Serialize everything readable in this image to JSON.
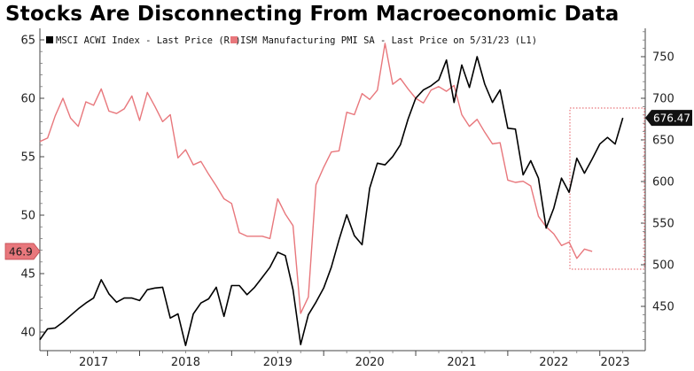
{
  "title": "Stocks Are Disconnecting From Macroeconomic Data",
  "chart_data": {
    "type": "line",
    "title": "Stocks Are Disconnecting From Macroeconomic Data",
    "legend_position": "top-left",
    "grid": false,
    "x_ticks": [
      "2017",
      "2018",
      "2019",
      "2020",
      "2021",
      "2022",
      "2023"
    ],
    "x_range": [
      "2016-12",
      "2023-06"
    ],
    "left_axis": {
      "ticks": [
        40,
        45,
        50,
        55,
        60,
        65
      ],
      "ylim": [
        40,
        65
      ],
      "last_value_tag": "46.9"
    },
    "right_axis": {
      "ticks": [
        450,
        500,
        550,
        600,
        650,
        700,
        750
      ],
      "ylim": [
        400,
        790
      ],
      "last_value_tag": "676.47"
    },
    "series": [
      {
        "name": "MSCI ACWI Index - Last Price (R1)",
        "axis": "right",
        "color": "#000000",
        "points": [
          [
            "2016-12",
            410
          ],
          [
            "2017-01",
            423
          ],
          [
            "2017-02",
            424
          ],
          [
            "2017-03",
            431
          ],
          [
            "2017-04",
            439
          ],
          [
            "2017-05",
            447
          ],
          [
            "2017-06",
            454
          ],
          [
            "2017-07",
            460
          ],
          [
            "2017-08",
            482
          ],
          [
            "2017-09",
            465
          ],
          [
            "2017-10",
            455
          ],
          [
            "2017-11",
            460
          ],
          [
            "2017-12",
            460
          ],
          [
            "2018-01",
            457
          ],
          [
            "2018-02",
            470
          ],
          [
            "2018-03",
            472
          ],
          [
            "2018-04",
            473
          ],
          [
            "2018-05",
            436
          ],
          [
            "2018-06",
            441
          ],
          [
            "2018-07",
            403
          ],
          [
            "2018-08",
            441
          ],
          [
            "2018-09",
            454
          ],
          [
            "2018-10",
            459
          ],
          [
            "2018-11",
            473
          ],
          [
            "2018-12",
            438
          ],
          [
            "2019-01",
            475
          ],
          [
            "2019-02",
            475
          ],
          [
            "2019-03",
            464
          ],
          [
            "2019-04",
            473
          ],
          [
            "2019-05",
            485
          ],
          [
            "2019-06",
            497
          ],
          [
            "2019-07",
            515
          ],
          [
            "2019-08",
            511
          ],
          [
            "2019-09",
            470
          ],
          [
            "2019-10",
            404
          ],
          [
            "2019-11",
            440
          ],
          [
            "2019-12",
            455
          ],
          [
            "2020-01",
            472
          ],
          [
            "2020-02",
            497
          ],
          [
            "2020-03",
            530
          ],
          [
            "2020-04",
            560
          ],
          [
            "2020-05",
            535
          ],
          [
            "2020-06",
            524
          ],
          [
            "2020-07",
            592
          ],
          [
            "2020-08",
            622
          ],
          [
            "2020-09",
            620
          ],
          [
            "2020-10",
            630
          ],
          [
            "2020-11",
            644
          ],
          [
            "2020-12",
            675
          ],
          [
            "2021-01",
            700
          ],
          [
            "2021-02",
            710
          ],
          [
            "2021-03",
            715
          ],
          [
            "2021-04",
            722
          ],
          [
            "2021-05",
            746
          ],
          [
            "2021-06",
            695
          ],
          [
            "2021-07",
            740
          ],
          [
            "2021-08",
            713
          ],
          [
            "2021-09",
            750
          ],
          [
            "2021-10",
            717
          ],
          [
            "2021-11",
            695
          ],
          [
            "2021-12",
            710
          ],
          [
            "2022-01",
            664
          ],
          [
            "2022-02",
            663
          ],
          [
            "2022-03",
            608
          ],
          [
            "2022-04",
            625
          ],
          [
            "2022-05",
            604
          ],
          [
            "2022-06",
            544
          ],
          [
            "2022-07",
            568
          ],
          [
            "2022-08",
            604
          ],
          [
            "2022-09",
            587
          ],
          [
            "2022-10",
            628
          ],
          [
            "2022-11",
            610
          ],
          [
            "2022-12",
            627
          ],
          [
            "2023-01",
            645
          ],
          [
            "2023-02",
            653
          ],
          [
            "2023-03",
            645
          ],
          [
            "2023-04",
            676.47
          ]
        ]
      },
      {
        "name": "ISM Manufacturing PMI SA - Last Price on 5/31/23 (L1)",
        "axis": "left",
        "color": "#e8777c",
        "points": [
          [
            "2016-12",
            56.3
          ],
          [
            "2017-01",
            56.6
          ],
          [
            "2017-02",
            58.5
          ],
          [
            "2017-03",
            60.0
          ],
          [
            "2017-04",
            58.3
          ],
          [
            "2017-05",
            57.6
          ],
          [
            "2017-06",
            59.7
          ],
          [
            "2017-07",
            59.4
          ],
          [
            "2017-08",
            60.8
          ],
          [
            "2017-09",
            58.9
          ],
          [
            "2017-10",
            58.7
          ],
          [
            "2017-11",
            59.1
          ],
          [
            "2017-12",
            60.2
          ],
          [
            "2018-01",
            58.1
          ],
          [
            "2018-02",
            60.5
          ],
          [
            "2018-03",
            59.3
          ],
          [
            "2018-04",
            58.0
          ],
          [
            "2018-05",
            58.6
          ],
          [
            "2018-06",
            54.9
          ],
          [
            "2018-07",
            55.6
          ],
          [
            "2018-08",
            54.3
          ],
          [
            "2018-09",
            54.6
          ],
          [
            "2018-10",
            53.5
          ],
          [
            "2018-11",
            52.5
          ],
          [
            "2018-12",
            51.4
          ],
          [
            "2019-01",
            51.0
          ],
          [
            "2019-02",
            48.5
          ],
          [
            "2019-03",
            48.2
          ],
          [
            "2019-04",
            48.2
          ],
          [
            "2019-05",
            48.2
          ],
          [
            "2019-06",
            48.0
          ],
          [
            "2019-07",
            51.4
          ],
          [
            "2019-08",
            50.1
          ],
          [
            "2019-09",
            49.1
          ],
          [
            "2019-10",
            41.6
          ],
          [
            "2019-11",
            43.0
          ],
          [
            "2019-12",
            52.6
          ],
          [
            "2020-01",
            54.1
          ],
          [
            "2020-02",
            55.4
          ],
          [
            "2020-03",
            55.5
          ],
          [
            "2020-04",
            58.8
          ],
          [
            "2020-05",
            58.6
          ],
          [
            "2020-06",
            60.4
          ],
          [
            "2020-07",
            59.9
          ],
          [
            "2020-08",
            60.7
          ],
          [
            "2020-09",
            64.7
          ],
          [
            "2020-10",
            61.2
          ],
          [
            "2020-11",
            61.7
          ],
          [
            "2020-12",
            60.8
          ],
          [
            "2021-01",
            60.0
          ],
          [
            "2021-02",
            59.6
          ],
          [
            "2021-03",
            60.7
          ],
          [
            "2021-04",
            61.0
          ],
          [
            "2021-05",
            60.6
          ],
          [
            "2021-06",
            61.1
          ],
          [
            "2021-07",
            58.6
          ],
          [
            "2021-08",
            57.6
          ],
          [
            "2021-09",
            58.2
          ],
          [
            "2021-10",
            57.1
          ],
          [
            "2021-11",
            56.1
          ],
          [
            "2021-12",
            56.2
          ],
          [
            "2022-01",
            53.0
          ],
          [
            "2022-02",
            52.8
          ],
          [
            "2022-03",
            52.9
          ],
          [
            "2022-04",
            52.5
          ],
          [
            "2022-05",
            49.9
          ],
          [
            "2022-06",
            49.0
          ],
          [
            "2022-07",
            48.4
          ],
          [
            "2022-08",
            47.4
          ],
          [
            "2022-09",
            47.7
          ],
          [
            "2022-10",
            46.3
          ],
          [
            "2022-11",
            47.1
          ],
          [
            "2022-12",
            46.9
          ]
        ]
      }
    ]
  }
}
